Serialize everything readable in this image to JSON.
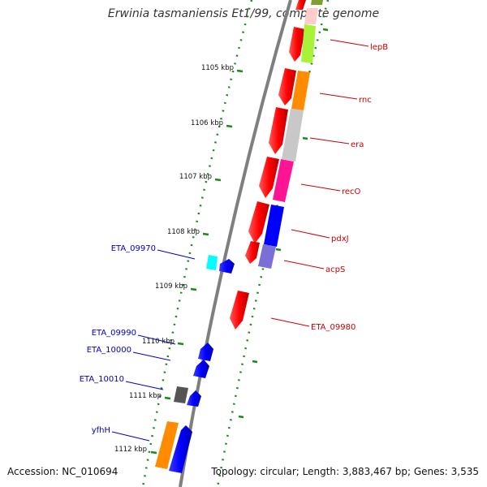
{
  "title": "Erwinia tasmaniensis Et1/99, complete genome",
  "footer": {
    "accession": "Accession: NC_010694",
    "stats": "Topology: circular; Length: 3,883,467 bp; Genes: 3,535"
  },
  "ticks": [
    {
      "label": "1105 kbp"
    },
    {
      "label": "1106 kbp"
    },
    {
      "label": "1107 kbp"
    },
    {
      "label": "1108 kbp"
    },
    {
      "label": "1109 kbp"
    },
    {
      "label": "1110 kbp"
    },
    {
      "label": "1111 kbp"
    },
    {
      "label": "1112 kbp"
    }
  ],
  "genes_right": [
    {
      "label": "lepB",
      "color": "#cc0000"
    },
    {
      "label": "rnc",
      "color": "#cc0000"
    },
    {
      "label": "era",
      "color": "#cc0000"
    },
    {
      "label": "recO",
      "color": "#cc0000"
    },
    {
      "label": "pdxJ",
      "color": "#cc0000"
    },
    {
      "label": "acpS",
      "color": "#cc0000"
    },
    {
      "label": "ETA_09980",
      "color": "#cc0000"
    }
  ],
  "genes_left": [
    {
      "label": "ETA_09970",
      "color": "#0000cc"
    },
    {
      "label": "ETA_09990",
      "color": "#0000cc"
    },
    {
      "label": "ETA_10000",
      "color": "#0000cc"
    },
    {
      "label": "ETA_10010",
      "color": "#0000cc"
    },
    {
      "label": "yfhH",
      "color": "#0000cc"
    }
  ],
  "colors": {
    "forward_strand": "#ff0000",
    "reverse_strand": "#0000ff",
    "backbone": "#7f7f7f",
    "gc_dots": "#1a8a1a"
  }
}
